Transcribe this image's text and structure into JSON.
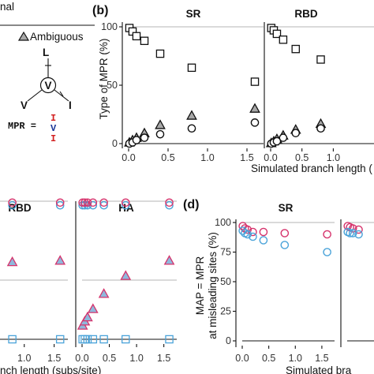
{
  "figure": {
    "panel_a_legend_cut": "nal",
    "panel_a_legend_ambiguous": "Ambiguous",
    "tree_top": "L",
    "tree_center": "V",
    "tree_left": "V",
    "tree_right": "I",
    "mpr_eq": "MPR =",
    "mpr_letters": [
      "I",
      "V",
      "I"
    ],
    "label_b": "(b)",
    "label_d": "(d)",
    "ylabel_b": "Type of MPR (%)",
    "xlabel_b": "Simulated branch length (",
    "xlabel_c": "nch length (subs/site)",
    "ylabel_d_line1": "MAP = MPR",
    "ylabel_d_line2": "at misleading sites (%)",
    "xlabel_d": "Simulated bra"
  },
  "colors": {
    "pink": "#d6336c",
    "blue": "#4aa3d9",
    "tri_fill": "#a8a8a8",
    "blue_fill": "#8fb8dc",
    "tree_blue": "#1e3a9a",
    "mpr_red": "#d22020"
  },
  "chart_data": [
    {
      "id": "b-SR",
      "title": "SR",
      "type": "scatter",
      "xlabel": "Simulated branch length (",
      "ylabel": "Type of MPR (%)",
      "xlim": [
        0,
        1.65
      ],
      "ylim": [
        0,
        100
      ],
      "xticks": [
        "0.0",
        "0.5",
        "1.0",
        "1.5"
      ],
      "yticks": [
        "0",
        "50",
        "100"
      ],
      "series": [
        {
          "marker": "square",
          "x": [
            0.01,
            0.05,
            0.1,
            0.2,
            0.4,
            0.8,
            1.6
          ],
          "y": [
            99,
            96,
            92,
            88,
            77,
            65,
            53
          ]
        },
        {
          "marker": "triangle",
          "x": [
            0.01,
            0.05,
            0.1,
            0.2,
            0.4,
            0.8,
            1.6
          ],
          "y": [
            1,
            3,
            5,
            9,
            16,
            24,
            30
          ]
        },
        {
          "marker": "circle",
          "x": [
            0.01,
            0.05,
            0.1,
            0.2,
            0.4,
            0.8,
            1.6
          ],
          "y": [
            0,
            1,
            3,
            5,
            8,
            13,
            18
          ]
        }
      ]
    },
    {
      "id": "b-RBD",
      "title": "RBD",
      "type": "scatter",
      "xlim": [
        0,
        1.65
      ],
      "ylim": [
        0,
        100
      ],
      "xticks": [
        "0.0",
        "0.5",
        "1.0"
      ],
      "series": [
        {
          "marker": "square",
          "x": [
            0.01,
            0.05,
            0.1,
            0.2,
            0.4,
            0.8
          ],
          "y": [
            99,
            97,
            94,
            89,
            81,
            72
          ]
        },
        {
          "marker": "triangle",
          "x": [
            0.01,
            0.05,
            0.1,
            0.2,
            0.4,
            0.8
          ],
          "y": [
            0.5,
            2,
            4,
            7,
            12,
            17
          ]
        },
        {
          "marker": "circle",
          "x": [
            0.01,
            0.05,
            0.1,
            0.2,
            0.4,
            0.8
          ],
          "y": [
            0,
            1,
            2,
            5,
            9,
            13
          ]
        }
      ]
    },
    {
      "id": "c-RBD",
      "title": "RBD",
      "type": "scatter",
      "xlabel": "nch length (subs/site)",
      "xlim": [
        0,
        1.65
      ],
      "ylim": [
        0,
        100
      ],
      "xticks": [
        "5",
        "1.0",
        "1.5"
      ],
      "series": [
        {
          "marker": "circle",
          "x": [
            0.8,
            1.6
          ],
          "y": [
            97,
            97
          ]
        },
        {
          "marker": "circle",
          "x": [
            0.8,
            1.6
          ],
          "y": [
            99,
            99
          ]
        },
        {
          "marker": "triangle",
          "x": [
            0.8,
            1.6
          ],
          "y": [
            56,
            57
          ]
        },
        {
          "marker": "square",
          "x": [
            0.8,
            1.6
          ],
          "y": [
            0,
            0
          ]
        }
      ]
    },
    {
      "id": "c-HA",
      "title": "HA",
      "type": "scatter",
      "xlim": [
        0,
        1.65
      ],
      "ylim": [
        0,
        100
      ],
      "xticks": [
        "0.0",
        "0.5",
        "1.0",
        "1.5"
      ],
      "series": [
        {
          "marker": "circle",
          "x": [
            0.01,
            0.05,
            0.1,
            0.2,
            0.4,
            0.8,
            1.6
          ],
          "y": [
            97,
            97,
            97,
            97,
            97,
            97,
            97
          ]
        },
        {
          "marker": "circle",
          "x": [
            0.01,
            0.05,
            0.1,
            0.2,
            0.4,
            0.8,
            1.6
          ],
          "y": [
            99,
            99,
            99,
            99,
            99,
            99,
            99
          ]
        },
        {
          "marker": "triangle",
          "x": [
            0.01,
            0.05,
            0.1,
            0.2,
            0.4,
            0.8,
            1.6
          ],
          "y": [
            10,
            13,
            16,
            22,
            33,
            46,
            57
          ]
        },
        {
          "marker": "square",
          "x": [
            0.01,
            0.05,
            0.1,
            0.2,
            0.4,
            0.8,
            1.6
          ],
          "y": [
            0,
            0,
            0,
            0,
            0,
            0,
            0
          ]
        }
      ]
    },
    {
      "id": "d-SR",
      "title": "SR",
      "type": "scatter",
      "xlabel": "Simulated bra",
      "ylabel": "MAP = MPR at misleading sites (%)",
      "xlim": [
        0,
        1.65
      ],
      "ylim": [
        0,
        100
      ],
      "xticks": [
        "0.0",
        "0.5",
        "1.0",
        "1.5"
      ],
      "yticks": [
        "0",
        "25",
        "50",
        "75",
        "100"
      ],
      "series": [
        {
          "marker": "circle",
          "x": [
            0.01,
            0.05,
            0.1,
            0.2,
            0.4,
            0.8,
            1.6
          ],
          "y": [
            97,
            95,
            94,
            92,
            92,
            91,
            90
          ]
        },
        {
          "marker": "circle",
          "x": [
            0.01,
            0.05,
            0.1,
            0.2,
            0.4,
            0.8,
            1.6
          ],
          "y": [
            93,
            91,
            90,
            88,
            85,
            81,
            75
          ]
        }
      ]
    },
    {
      "id": "d-right",
      "title": "",
      "type": "scatter",
      "xlim": [
        0,
        1.65
      ],
      "ylim": [
        0,
        100
      ],
      "series": [
        {
          "marker": "circle",
          "x": [
            0.01,
            0.05,
            0.1,
            0.2
          ],
          "y": [
            97,
            96,
            95,
            94
          ]
        },
        {
          "marker": "circle",
          "x": [
            0.01,
            0.05,
            0.1,
            0.2
          ],
          "y": [
            92,
            91,
            91,
            90
          ]
        }
      ]
    }
  ]
}
